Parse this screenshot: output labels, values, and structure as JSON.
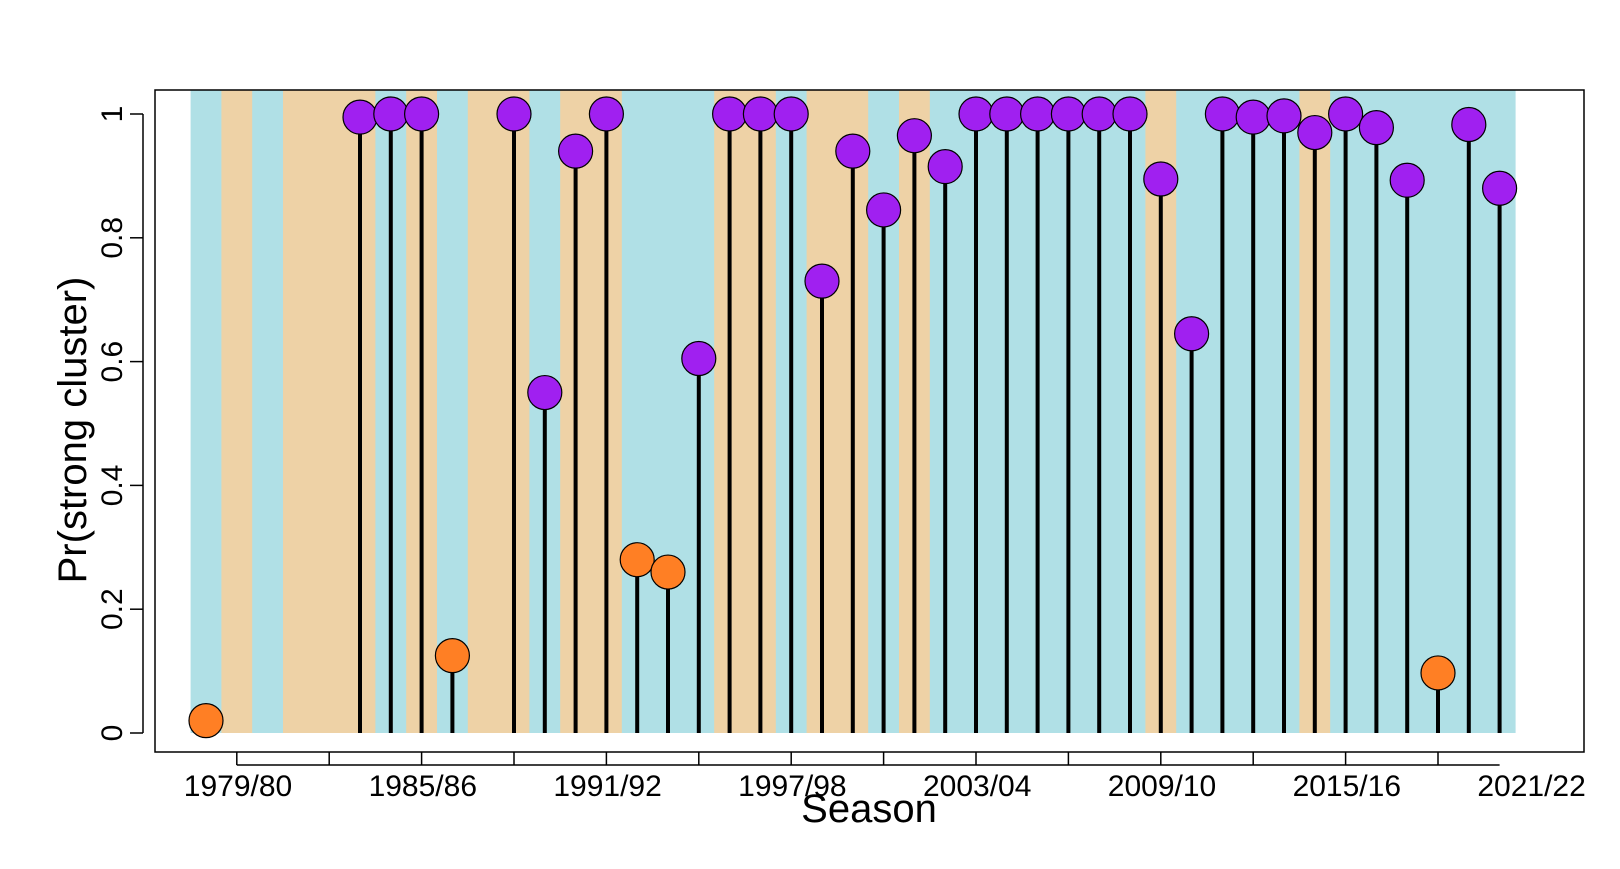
{
  "chart_data": {
    "type": "scatter",
    "style": "lollipop",
    "xlabel": "Season",
    "ylabel": "Pr(strong cluster)",
    "ylim": [
      0,
      1
    ],
    "y_ticks": [
      "0",
      "0.2",
      "0.4",
      "0.6",
      "0.8",
      "1"
    ],
    "x_tick_labels": [
      "1979/80",
      "1985/86",
      "1991/92",
      "1997/98",
      "2003/04",
      "2009/10",
      "2015/16",
      "2021/22"
    ],
    "grid": false,
    "legend": "none",
    "colors": {
      "strong": "#a020f0",
      "weak": "#ff7f24",
      "band_a": "#b0e0e6",
      "band_b": "#eed2a6",
      "stem": "#000000"
    },
    "seasons": [
      "1979/80",
      "1980/81",
      "1981/82",
      "1982/83",
      "1983/84",
      "1984/85",
      "1985/86",
      "1986/87",
      "1987/88",
      "1988/89",
      "1989/90",
      "1990/91",
      "1991/92",
      "1992/93",
      "1993/94",
      "1994/95",
      "1995/96",
      "1996/97",
      "1997/98",
      "1998/99",
      "1999/00",
      "2000/01",
      "2001/02",
      "2002/03",
      "2003/04",
      "2004/05",
      "2005/06",
      "2006/07",
      "2007/08",
      "2008/09",
      "2009/10",
      "2010/11",
      "2011/12",
      "2012/13",
      "2013/14",
      "2014/15",
      "2015/16",
      "2016/17",
      "2017/18",
      "2018/19",
      "2019/20",
      "2020/21",
      "2021/22"
    ],
    "values": [
      0.02,
      null,
      null,
      null,
      null,
      0.995,
      1.0,
      1.0,
      0.125,
      null,
      1.0,
      0.55,
      0.94,
      1.0,
      0.28,
      0.26,
      0.605,
      1.0,
      1.0,
      1.0,
      0.73,
      0.94,
      0.845,
      0.965,
      0.915,
      1.0,
      1.0,
      1.0,
      1.0,
      1.0,
      1.0,
      0.895,
      0.645,
      1.0,
      0.995,
      0.997,
      0.97,
      1.0,
      0.978,
      0.893,
      0.097,
      0.983,
      0.88
    ],
    "cluster": [
      "weak",
      null,
      null,
      null,
      null,
      "strong",
      "strong",
      "strong",
      "weak",
      null,
      "strong",
      "strong",
      "strong",
      "strong",
      "weak",
      "weak",
      "strong",
      "strong",
      "strong",
      "strong",
      "strong",
      "strong",
      "strong",
      "strong",
      "strong",
      "strong",
      "strong",
      "strong",
      "strong",
      "strong",
      "strong",
      "strong",
      "strong",
      "strong",
      "strong",
      "strong",
      "strong",
      "strong",
      "strong",
      "strong",
      "weak",
      "strong",
      "strong"
    ],
    "bands": [
      "a",
      "b",
      "a",
      "b",
      "b",
      "b",
      "a",
      "b",
      "a",
      "b",
      "b",
      "a",
      "b",
      "b",
      "a",
      "a",
      "a",
      "b",
      "b",
      "a",
      "b",
      "b",
      "a",
      "b",
      "a",
      "a",
      "a",
      "a",
      "a",
      "a",
      "a",
      "b",
      "a",
      "a",
      "a",
      "a",
      "b",
      "a",
      "a",
      "a",
      "a",
      "a",
      "a"
    ]
  }
}
